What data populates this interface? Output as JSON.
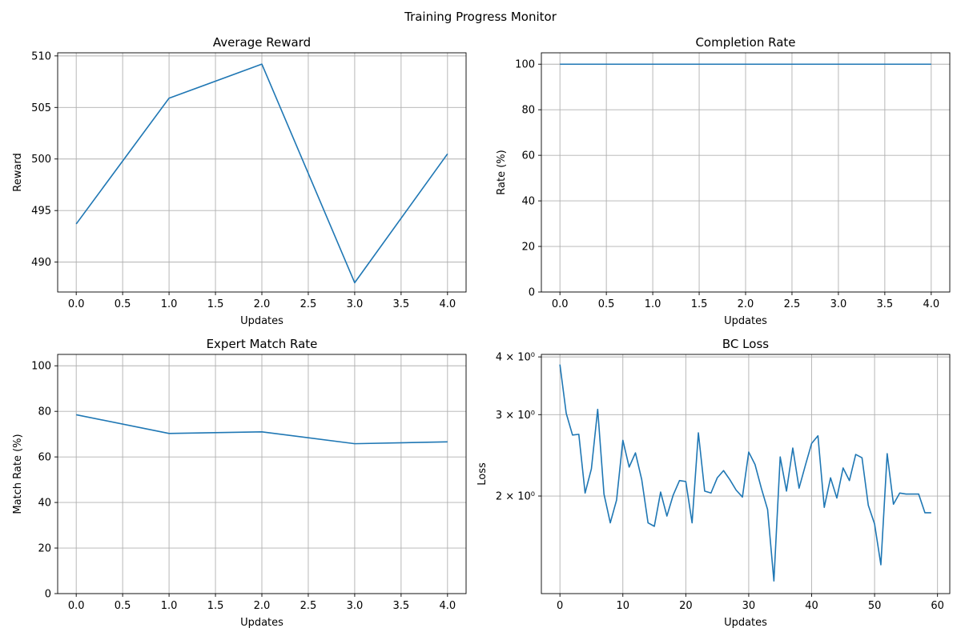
{
  "figure_title": "Training Progress Monitor",
  "colors": {
    "line": "#1f77b4",
    "grid": "#b0b0b0",
    "axis": "#000000"
  },
  "chart_data": [
    {
      "id": "reward",
      "type": "line",
      "title": "Average Reward",
      "xlabel": "Updates",
      "ylabel": "Reward",
      "xlim": [
        -0.2,
        4.2
      ],
      "ylim": [
        487.1,
        510.3
      ],
      "xticks": [
        0,
        0.5,
        1,
        1.5,
        2,
        2.5,
        3,
        3.5,
        4
      ],
      "xtick_labels": [
        "0.0",
        "0.5",
        "1.0",
        "1.5",
        "2.0",
        "2.5",
        "3.0",
        "3.5",
        "4.0"
      ],
      "yticks": [
        490,
        495,
        500,
        505,
        510
      ],
      "ytick_labels": [
        "490",
        "495",
        "500",
        "505",
        "510"
      ],
      "grid": true,
      "x": [
        0,
        1,
        2,
        3,
        4
      ],
      "y": [
        493.7,
        505.9,
        509.2,
        488.0,
        500.5
      ]
    },
    {
      "id": "completion",
      "type": "line",
      "title": "Completion Rate",
      "xlabel": "Updates",
      "ylabel": "Rate (%)",
      "xlim": [
        -0.2,
        4.2
      ],
      "ylim": [
        0,
        105
      ],
      "xticks": [
        0,
        0.5,
        1,
        1.5,
        2,
        2.5,
        3,
        3.5,
        4
      ],
      "xtick_labels": [
        "0.0",
        "0.5",
        "1.0",
        "1.5",
        "2.0",
        "2.5",
        "3.0",
        "3.5",
        "4.0"
      ],
      "yticks": [
        0,
        20,
        40,
        60,
        80,
        100
      ],
      "ytick_labels": [
        "0",
        "20",
        "40",
        "60",
        "80",
        "100"
      ],
      "grid": true,
      "x": [
        0,
        1,
        2,
        3,
        4
      ],
      "y": [
        100,
        100,
        100,
        100,
        100
      ]
    },
    {
      "id": "match",
      "type": "line",
      "title": "Expert Match Rate",
      "xlabel": "Updates",
      "ylabel": "Match Rate (%)",
      "xlim": [
        -0.2,
        4.2
      ],
      "ylim": [
        0,
        105
      ],
      "xticks": [
        0,
        0.5,
        1,
        1.5,
        2,
        2.5,
        3,
        3.5,
        4
      ],
      "xtick_labels": [
        "0.0",
        "0.5",
        "1.0",
        "1.5",
        "2.0",
        "2.5",
        "3.0",
        "3.5",
        "4.0"
      ],
      "yticks": [
        0,
        20,
        40,
        60,
        80,
        100
      ],
      "ytick_labels": [
        "0",
        "20",
        "40",
        "60",
        "80",
        "100"
      ],
      "grid": true,
      "x": [
        0,
        1,
        2,
        3,
        4
      ],
      "y": [
        78.5,
        70.3,
        71.0,
        65.8,
        66.6
      ]
    },
    {
      "id": "bcloss",
      "type": "line",
      "title": "BC Loss",
      "xlabel": "Updates",
      "ylabel": "Loss",
      "yscale": "log",
      "xlim": [
        -2.95,
        61.95
      ],
      "ylim": [
        1.23,
        4.05
      ],
      "xticks": [
        0,
        10,
        20,
        30,
        40,
        50,
        60
      ],
      "xtick_labels": [
        "0",
        "10",
        "20",
        "30",
        "40",
        "50",
        "60"
      ],
      "yticks": [
        2,
        3,
        4
      ],
      "ytick_labels": [
        "2 × 10⁰",
        "3 × 10⁰",
        "4 × 10⁰"
      ],
      "grid": true,
      "x": [
        0,
        1,
        2,
        3,
        4,
        5,
        6,
        7,
        8,
        9,
        10,
        11,
        12,
        13,
        14,
        15,
        16,
        17,
        18,
        19,
        20,
        21,
        22,
        23,
        24,
        25,
        26,
        27,
        28,
        29,
        30,
        31,
        32,
        33,
        34,
        35,
        36,
        37,
        38,
        39,
        40,
        41,
        42,
        43,
        44,
        45,
        46,
        47,
        48,
        49,
        50,
        51,
        52,
        53,
        54,
        55,
        56,
        57,
        58,
        59
      ],
      "y": [
        3.85,
        3.02,
        2.71,
        2.72,
        2.03,
        2.29,
        3.08,
        2.02,
        1.75,
        1.96,
        2.64,
        2.31,
        2.48,
        2.17,
        1.75,
        1.72,
        2.04,
        1.81,
        2.01,
        2.16,
        2.15,
        1.75,
        2.74,
        2.05,
        2.03,
        2.19,
        2.27,
        2.17,
        2.06,
        1.99,
        2.49,
        2.34,
        2.08,
        1.87,
        1.31,
        2.43,
        2.05,
        2.54,
        2.08,
        2.33,
        2.6,
        2.7,
        1.89,
        2.19,
        1.98,
        2.3,
        2.16,
        2.46,
        2.42,
        1.91,
        1.74,
        1.42,
        2.47,
        1.92,
        2.03,
        2.02,
        2.02,
        2.02,
        1.84,
        1.84
      ]
    }
  ]
}
